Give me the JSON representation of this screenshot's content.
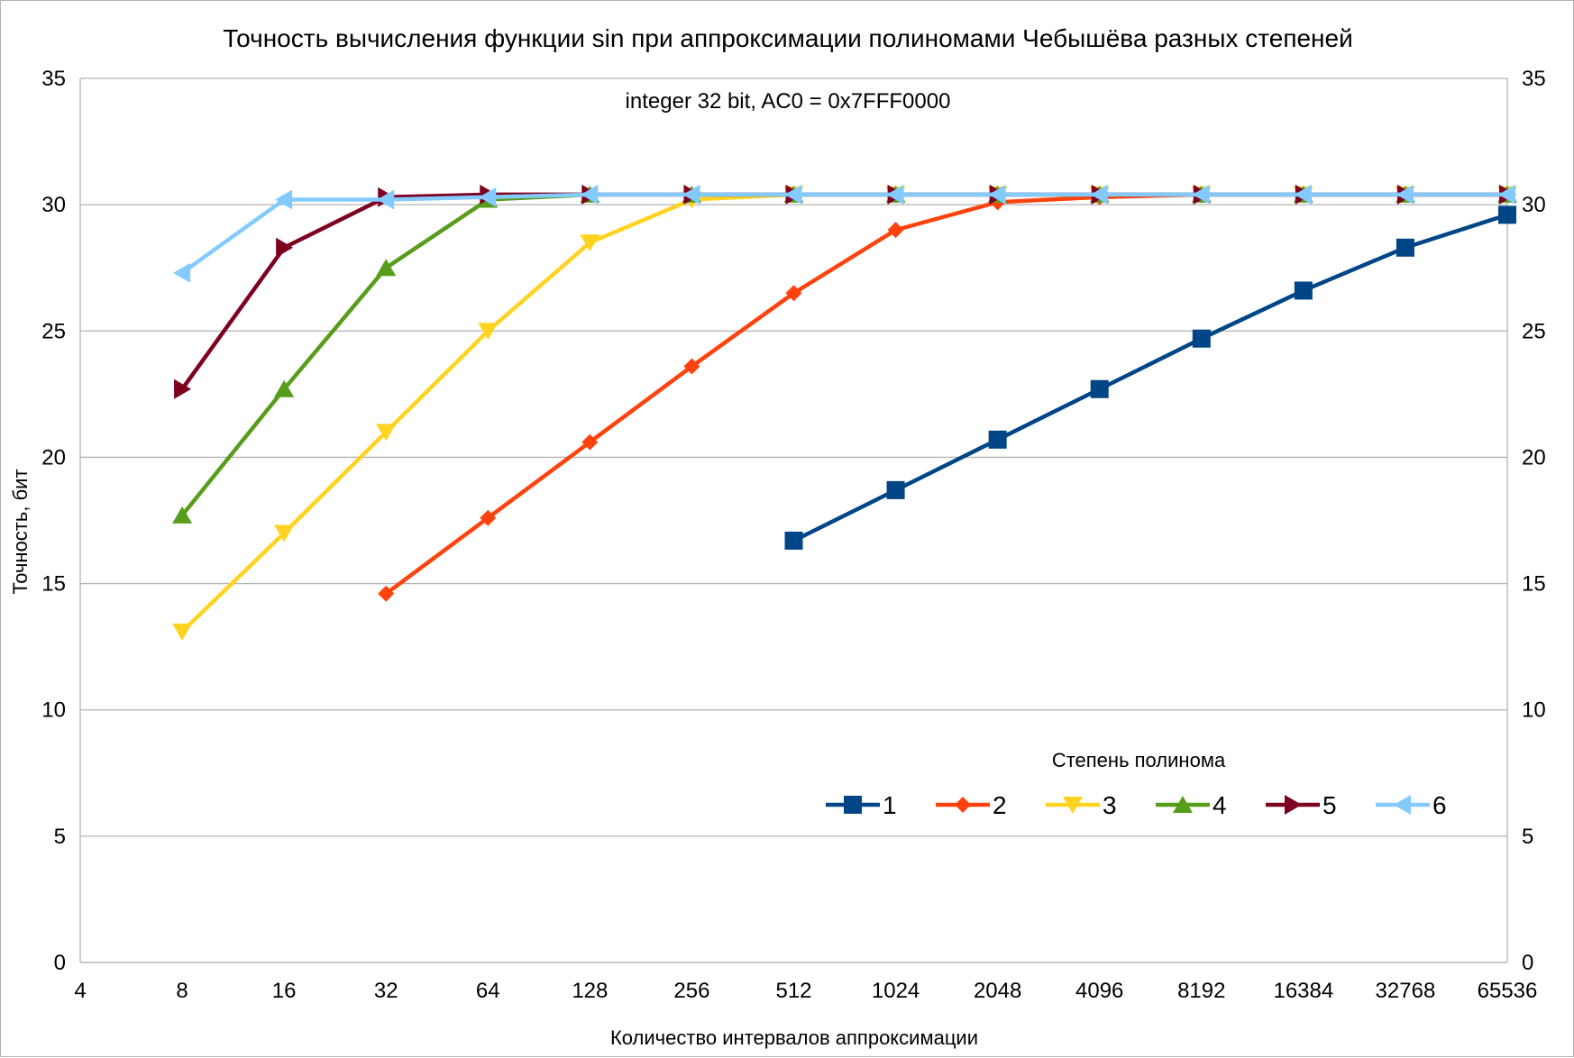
{
  "chart_data": {
    "type": "line",
    "title": "Точность вычисления функции sin при аппроксимации полиномами Чебышёва разных степеней",
    "subtitle": "integer 32 bit, AC0 = 0x7FFF0000",
    "xlabel": "Количество интервалов аппроксимации",
    "ylabel": "Точность, бит",
    "categories": [
      "4",
      "8",
      "16",
      "32",
      "64",
      "128",
      "256",
      "512",
      "1024",
      "2048",
      "4096",
      "8192",
      "16384",
      "32768",
      "65536"
    ],
    "ylim": [
      0,
      35
    ],
    "yticks": [
      "0",
      "5",
      "10",
      "15",
      "20",
      "25",
      "30",
      "35"
    ],
    "grid": true,
    "legend_title": "Степень полинома",
    "legend_position": "bottom-right",
    "series": [
      {
        "name": "1",
        "color": "#004586",
        "marker": "square",
        "values": [
          null,
          null,
          null,
          null,
          null,
          null,
          null,
          16.7,
          18.7,
          20.7,
          22.7,
          24.7,
          26.6,
          28.3,
          29.6
        ]
      },
      {
        "name": "2",
        "color": "#ff420e",
        "marker": "diamond",
        "values": [
          null,
          null,
          null,
          14.6,
          17.6,
          20.6,
          23.6,
          26.5,
          29.0,
          30.1,
          30.3,
          30.4,
          30.4,
          30.4,
          30.4
        ]
      },
      {
        "name": "3",
        "color": "#ffd320",
        "marker": "triangle-down",
        "values": [
          null,
          13.1,
          17.0,
          21.0,
          25.0,
          28.5,
          30.2,
          30.4,
          30.4,
          30.4,
          30.4,
          30.4,
          30.4,
          30.4,
          30.4
        ]
      },
      {
        "name": "4",
        "color": "#579d1c",
        "marker": "triangle-up",
        "values": [
          null,
          17.7,
          22.7,
          27.5,
          30.2,
          30.4,
          30.4,
          30.4,
          30.4,
          30.4,
          30.4,
          30.4,
          30.4,
          30.4,
          30.4
        ]
      },
      {
        "name": "5",
        "color": "#7e0021",
        "marker": "triangle-right",
        "values": [
          null,
          22.7,
          28.3,
          30.3,
          30.4,
          30.4,
          30.4,
          30.4,
          30.4,
          30.4,
          30.4,
          30.4,
          30.4,
          30.4,
          30.4
        ]
      },
      {
        "name": "6",
        "color": "#83caff",
        "marker": "triangle-left",
        "values": [
          null,
          27.3,
          30.2,
          30.2,
          30.3,
          30.4,
          30.4,
          30.4,
          30.4,
          30.4,
          30.4,
          30.4,
          30.4,
          30.4,
          30.4
        ]
      }
    ]
  }
}
